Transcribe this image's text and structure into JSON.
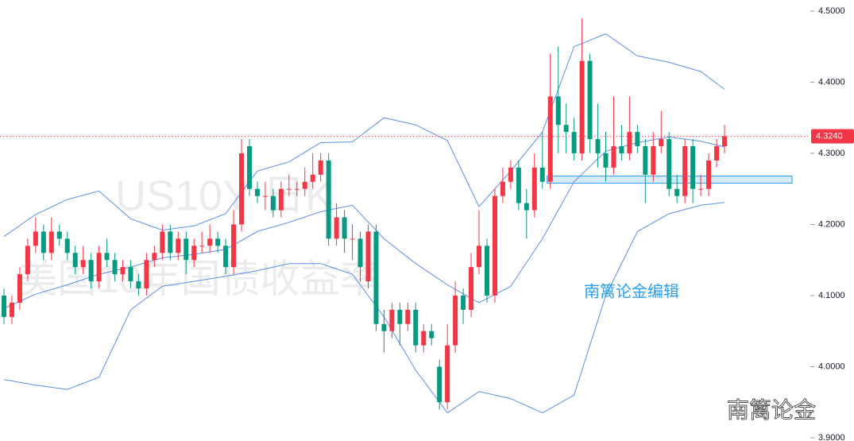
{
  "chart_data": {
    "type": "candlestick",
    "watermark_symbol": "US10Y 日K",
    "watermark_name": "美国10年国债收益率",
    "editor_note": "南篱论金编辑",
    "brand": "南篱论金",
    "up_color": "#f23645",
    "down_color": "#089981",
    "ylim": [
      3.8955,
      4.5156
    ],
    "yticks": [
      {
        "value": 4.5,
        "label": "4.5000"
      },
      {
        "value": 4.4,
        "label": "4.4000"
      },
      {
        "value": 4.3,
        "label": "4.3000"
      },
      {
        "value": 4.2,
        "label": "4.2000"
      },
      {
        "value": 4.1,
        "label": "4.1000"
      },
      {
        "value": 4.0,
        "label": "4.0000"
      },
      {
        "value": 3.9,
        "label": "3.9000"
      }
    ],
    "last_price": {
      "value": 4.324,
      "label": "4.3240"
    },
    "zone": [
      4.258,
      4.268
    ],
    "open": [
      4.1,
      4.07,
      4.09,
      4.13,
      4.17,
      4.19,
      4.16,
      4.19,
      4.18,
      4.16,
      4.14,
      4.15,
      4.12,
      4.16,
      4.15,
      4.13,
      4.14,
      4.12,
      4.11,
      4.15,
      4.16,
      4.19,
      4.16,
      4.18,
      4.15,
      4.17,
      4.17,
      4.18,
      4.17,
      4.14,
      4.2,
      4.31,
      4.25,
      4.24,
      4.24,
      4.22,
      4.25,
      4.25,
      4.25,
      4.26,
      4.27,
      4.29,
      4.18,
      4.21,
      4.18,
      4.18,
      4.12,
      4.19,
      4.06,
      4.05,
      4.08,
      4.06,
      4.08,
      4.03,
      4.05,
      4.0,
      3.95,
      4.03,
      4.1,
      4.08,
      4.14,
      4.17,
      4.1,
      4.24,
      4.26,
      4.28,
      4.23,
      4.22,
      4.28,
      4.26,
      4.38,
      4.34,
      4.33,
      4.3,
      4.43,
      4.32,
      4.3,
      4.28,
      4.31,
      4.3,
      4.33,
      4.31,
      4.27,
      4.31,
      4.32,
      4.25,
      4.24,
      4.31,
      4.25,
      4.25,
      4.29,
      4.31
    ],
    "close": [
      4.07,
      4.09,
      4.13,
      4.17,
      4.19,
      4.16,
      4.19,
      4.18,
      4.16,
      4.14,
      4.15,
      4.12,
      4.16,
      4.15,
      4.13,
      4.14,
      4.12,
      4.11,
      4.15,
      4.16,
      4.19,
      4.16,
      4.18,
      4.15,
      4.17,
      4.17,
      4.18,
      4.17,
      4.14,
      4.2,
      4.3,
      4.25,
      4.24,
      4.24,
      4.22,
      4.25,
      4.25,
      4.25,
      4.26,
      4.27,
      4.29,
      4.18,
      4.21,
      4.18,
      4.18,
      4.14,
      4.19,
      4.06,
      4.05,
      4.08,
      4.06,
      4.08,
      4.03,
      4.05,
      4.04,
      3.95,
      4.03,
      4.1,
      4.08,
      4.14,
      4.17,
      4.1,
      4.24,
      4.26,
      4.28,
      4.23,
      4.22,
      4.28,
      4.26,
      4.38,
      4.34,
      4.33,
      4.3,
      4.43,
      4.32,
      4.3,
      4.28,
      4.31,
      4.3,
      4.33,
      4.31,
      4.27,
      4.31,
      4.32,
      4.25,
      4.24,
      4.31,
      4.25,
      4.25,
      4.29,
      4.31,
      4.324
    ],
    "high": [
      4.11,
      4.1,
      4.14,
      4.18,
      4.21,
      4.2,
      4.21,
      4.2,
      4.19,
      4.17,
      4.17,
      4.16,
      4.17,
      4.18,
      4.16,
      4.15,
      4.15,
      4.13,
      4.16,
      4.17,
      4.2,
      4.2,
      4.19,
      4.19,
      4.18,
      4.19,
      4.2,
      4.19,
      4.18,
      4.22,
      4.32,
      4.32,
      4.26,
      4.26,
      4.25,
      4.26,
      4.27,
      4.26,
      4.28,
      4.3,
      4.3,
      4.3,
      4.23,
      4.22,
      4.2,
      4.19,
      4.2,
      4.2,
      4.08,
      4.09,
      4.09,
      4.09,
      4.09,
      4.06,
      4.06,
      4.01,
      4.06,
      4.12,
      4.11,
      4.16,
      4.22,
      4.18,
      4.25,
      4.28,
      4.29,
      4.29,
      4.25,
      4.3,
      4.33,
      4.44,
      4.45,
      4.37,
      4.35,
      4.49,
      4.44,
      4.37,
      4.33,
      4.38,
      4.34,
      4.38,
      4.34,
      4.32,
      4.33,
      4.36,
      4.33,
      4.27,
      4.32,
      4.32,
      4.27,
      4.3,
      4.32,
      4.34
    ],
    "low": [
      4.06,
      4.06,
      4.08,
      4.12,
      4.16,
      4.15,
      4.15,
      4.17,
      4.15,
      4.13,
      4.13,
      4.11,
      4.11,
      4.14,
      4.12,
      4.12,
      4.11,
      4.1,
      4.1,
      4.14,
      4.15,
      4.15,
      4.15,
      4.13,
      4.14,
      4.16,
      4.16,
      4.16,
      4.13,
      4.13,
      4.19,
      4.24,
      4.23,
      4.22,
      4.21,
      4.21,
      4.24,
      4.24,
      4.24,
      4.25,
      4.26,
      4.17,
      4.17,
      4.16,
      4.15,
      4.12,
      4.11,
      4.05,
      4.02,
      4.04,
      4.03,
      4.05,
      4.02,
      4.02,
      4.03,
      3.94,
      3.94,
      4.02,
      4.06,
      4.07,
      4.13,
      4.09,
      4.09,
      4.23,
      4.25,
      4.22,
      4.18,
      4.21,
      4.25,
      4.25,
      4.3,
      4.3,
      4.29,
      4.29,
      4.3,
      4.28,
      4.26,
      4.27,
      4.29,
      4.29,
      4.3,
      4.23,
      4.26,
      4.3,
      4.24,
      4.23,
      4.23,
      4.23,
      4.24,
      4.24,
      4.28,
      4.3
    ],
    "bands": [
      {
        "color": "#5b8def",
        "x": [
          0,
          4,
          8,
          12,
          16,
          20,
          24,
          28,
          32,
          36,
          40,
          44,
          48,
          52,
          56,
          60,
          64,
          68,
          72,
          76,
          80,
          84,
          88,
          91
        ],
        "values": [
          4.183,
          4.214,
          4.235,
          4.247,
          4.208,
          4.192,
          4.198,
          4.215,
          4.275,
          4.288,
          4.315,
          4.316,
          4.35,
          4.34,
          4.318,
          4.225,
          4.275,
          4.33,
          4.45,
          4.468,
          4.437,
          4.428,
          4.415,
          4.39
        ]
      },
      {
        "color": "#5b8def",
        "x": [
          0,
          4,
          8,
          12,
          16,
          20,
          24,
          28,
          32,
          36,
          40,
          44,
          48,
          52,
          56,
          60,
          64,
          68,
          72,
          76,
          80,
          84,
          88,
          91
        ],
        "values": [
          4.082,
          4.102,
          4.115,
          4.13,
          4.14,
          4.153,
          4.158,
          4.165,
          4.19,
          4.203,
          4.218,
          4.227,
          4.18,
          4.145,
          4.115,
          4.09,
          4.113,
          4.18,
          4.26,
          4.303,
          4.315,
          4.323,
          4.317,
          4.309
        ]
      },
      {
        "color": "#5b8def",
        "x": [
          0,
          4,
          8,
          12,
          16,
          20,
          24,
          28,
          32,
          36,
          40,
          44,
          48,
          52,
          56,
          60,
          64,
          68,
          72,
          76,
          80,
          84,
          88,
          91
        ],
        "values": [
          3.982,
          3.974,
          3.968,
          3.985,
          4.08,
          4.113,
          4.12,
          4.127,
          4.135,
          4.145,
          4.145,
          4.13,
          4.07,
          3.995,
          3.935,
          3.965,
          3.955,
          3.935,
          3.96,
          4.1,
          4.19,
          4.215,
          4.227,
          4.231
        ]
      }
    ]
  }
}
